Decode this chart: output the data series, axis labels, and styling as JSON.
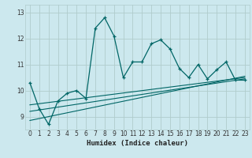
{
  "xlabel": "Humidex (Indice chaleur)",
  "ylabel": "",
  "bg_color": "#cce8ee",
  "grid_color": "#b0cccc",
  "line_color": "#006666",
  "xlim": [
    -0.5,
    23.5
  ],
  "ylim": [
    8.5,
    13.3
  ],
  "yticks": [
    9,
    10,
    11,
    12,
    13
  ],
  "xticks": [
    0,
    1,
    2,
    3,
    4,
    5,
    6,
    7,
    8,
    9,
    10,
    11,
    12,
    13,
    14,
    15,
    16,
    17,
    18,
    19,
    20,
    21,
    22,
    23
  ],
  "series1_x": [
    0,
    1,
    2,
    3,
    4,
    5,
    6,
    7,
    8,
    9,
    10,
    11,
    12,
    13,
    14,
    15,
    16,
    17,
    18,
    19,
    20,
    21,
    22,
    23
  ],
  "series1_y": [
    10.3,
    9.3,
    8.7,
    9.6,
    9.9,
    10.0,
    9.7,
    12.4,
    12.8,
    12.1,
    10.5,
    11.1,
    11.1,
    11.8,
    11.95,
    11.6,
    10.85,
    10.5,
    11.0,
    10.45,
    10.8,
    11.1,
    10.4,
    10.4
  ],
  "series2_x": [
    0,
    23
  ],
  "series2_y": [
    8.85,
    10.55
  ],
  "series3_x": [
    0,
    23
  ],
  "series3_y": [
    9.2,
    10.45
  ],
  "series4_x": [
    0,
    23
  ],
  "series4_y": [
    9.45,
    10.5
  ]
}
